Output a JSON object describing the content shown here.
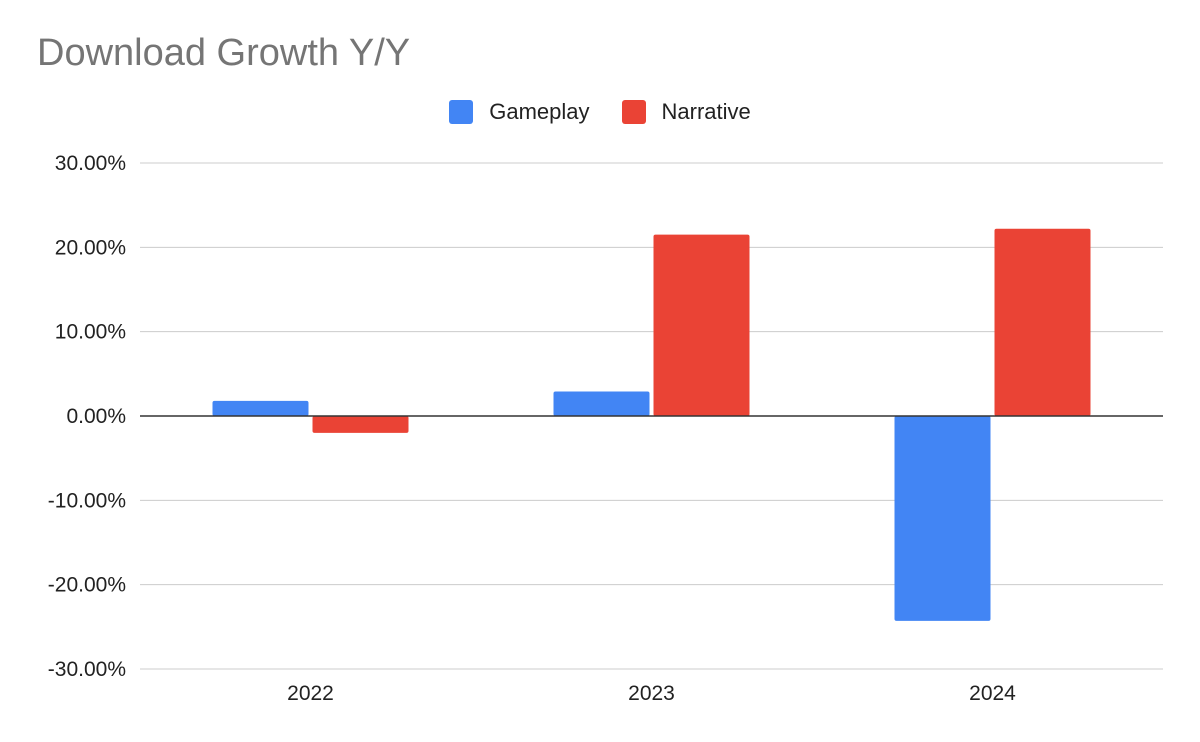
{
  "chart_data": {
    "type": "bar",
    "title": "Download Growth Y/Y",
    "xlabel": "",
    "ylabel": "",
    "categories": [
      "2022",
      "2023",
      "2024"
    ],
    "series": [
      {
        "name": "Gameplay",
        "color": "#4285F4",
        "values": [
          1.8,
          2.9,
          -24.3
        ]
      },
      {
        "name": "Narrative",
        "color": "#EA4335",
        "values": [
          -2.0,
          21.5,
          22.2
        ]
      }
    ],
    "ylim": [
      -30,
      30
    ],
    "yticks": [
      30,
      20,
      10,
      0,
      -10,
      -20,
      -30
    ],
    "ytick_labels": [
      "30.00%",
      "20.00%",
      "10.00%",
      "0.00%",
      "-10.00%",
      "-20.00%",
      "-30.00%"
    ],
    "grid": true,
    "legend_position": "top-center"
  }
}
